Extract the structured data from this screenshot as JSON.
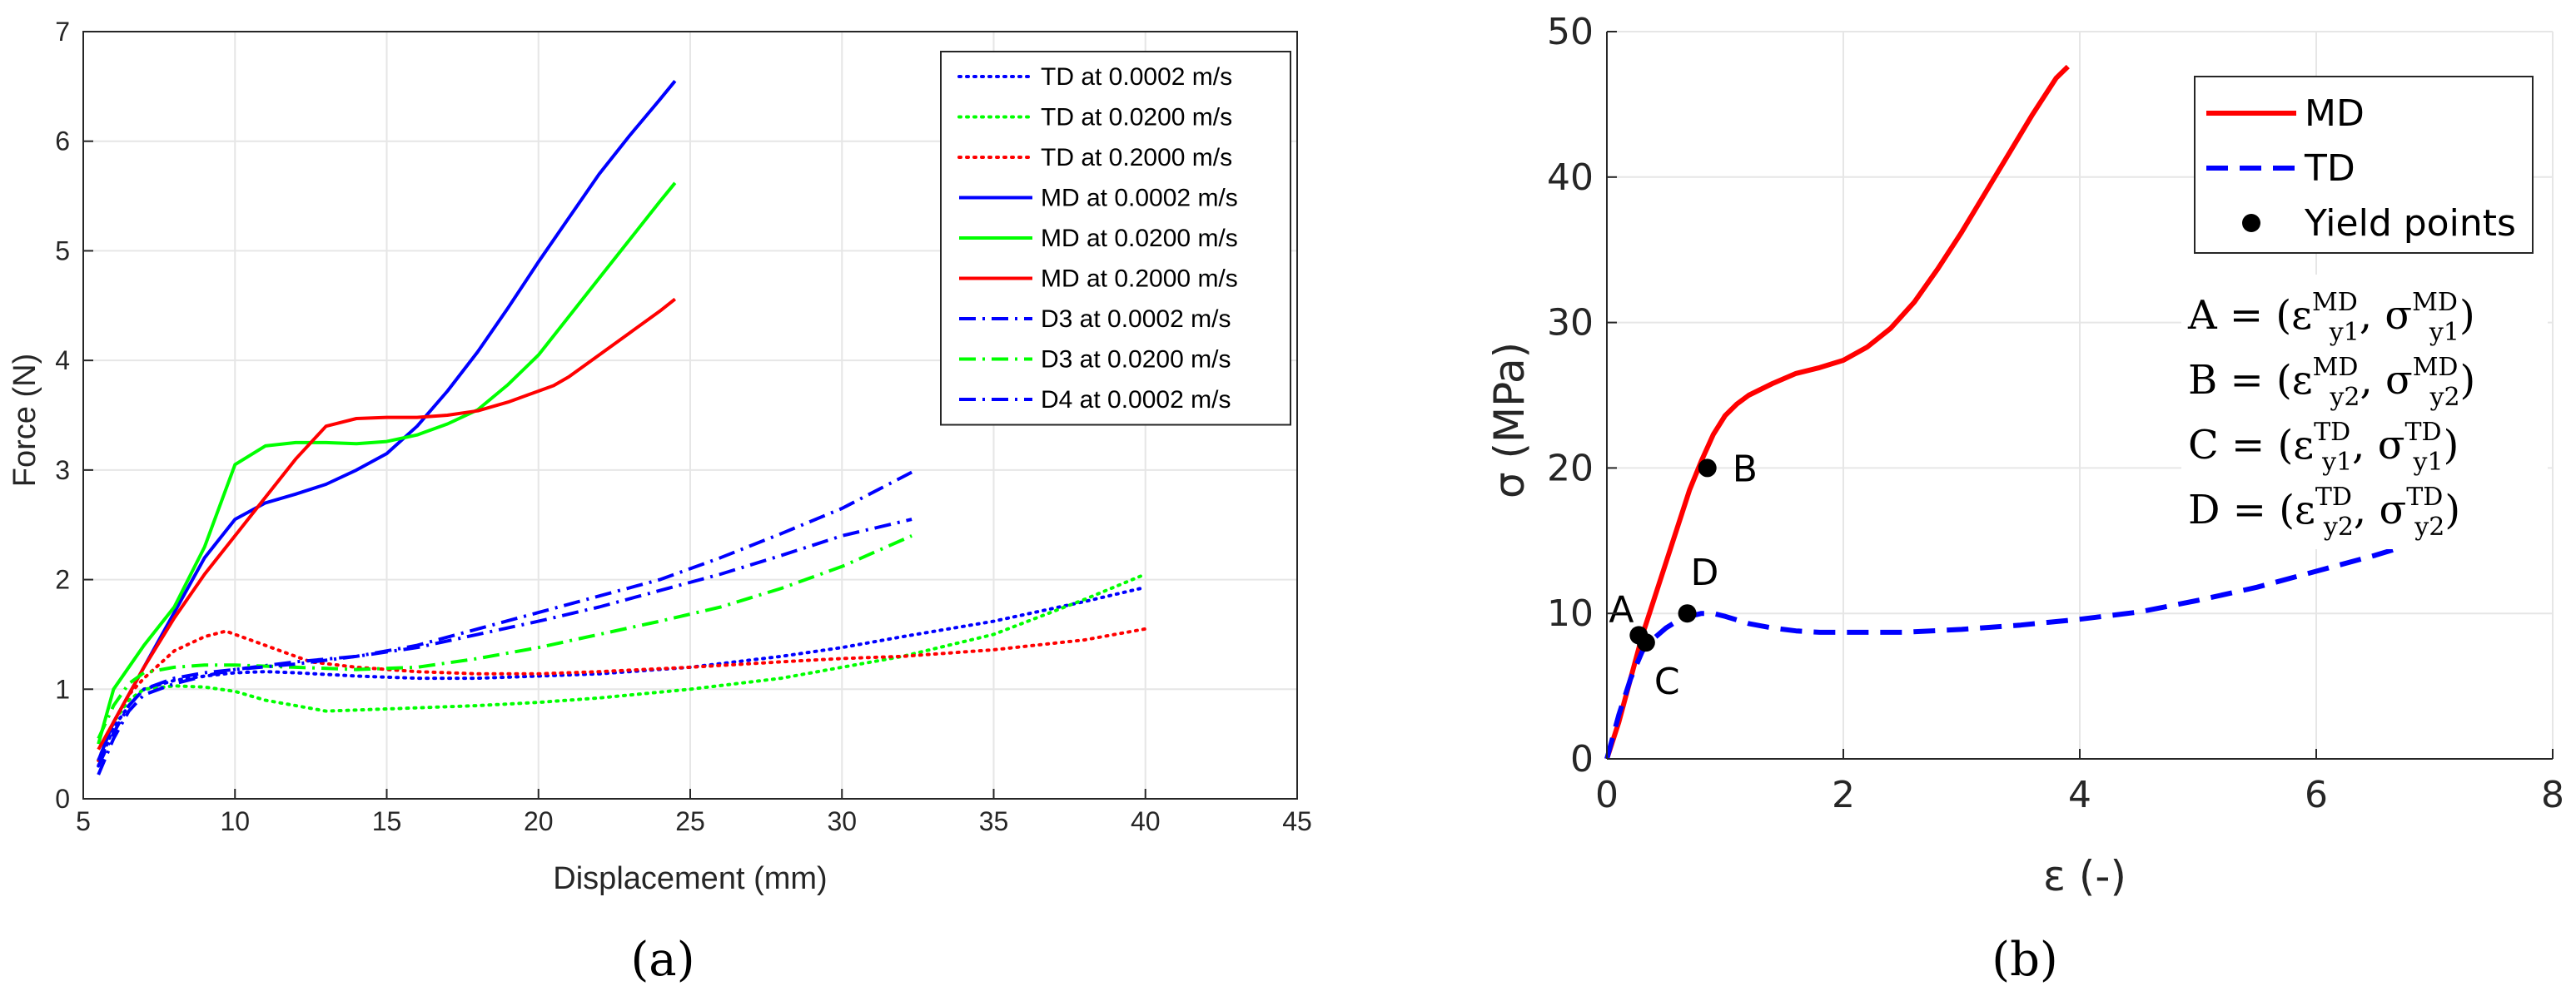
{
  "chart_data": [
    {
      "type": "line",
      "panel_label": "(a)",
      "xlabel": "Displacement (mm)",
      "ylabel": "Force (N)",
      "xlim": [
        5,
        45
      ],
      "ylim": [
        0,
        7
      ],
      "xticks": [
        5,
        10,
        15,
        20,
        25,
        30,
        35,
        40,
        45
      ],
      "yticks": [
        0,
        1,
        2,
        3,
        4,
        5,
        6,
        7
      ],
      "grid": true,
      "legend_position": "top-right",
      "series": [
        {
          "name": "TD at 0.0002 m/s",
          "color": "#0000ff",
          "style": "dotted",
          "x": [
            5.5,
            6,
            6.5,
            7,
            8,
            9,
            10,
            11,
            12,
            14,
            16,
            18,
            20,
            22,
            25,
            28,
            30,
            32,
            35,
            38,
            40
          ],
          "y": [
            0.3,
            0.65,
            0.85,
            1.0,
            1.08,
            1.12,
            1.15,
            1.16,
            1.15,
            1.12,
            1.1,
            1.1,
            1.12,
            1.14,
            1.2,
            1.3,
            1.38,
            1.48,
            1.62,
            1.8,
            1.93
          ]
        },
        {
          "name": "TD at 0.0200 m/s",
          "color": "#00ff00",
          "style": "dotted",
          "x": [
            5.5,
            6,
            6.5,
            7,
            8,
            9,
            10,
            11,
            12,
            13,
            15,
            18,
            20,
            22,
            25,
            28,
            30,
            32,
            35,
            38,
            40
          ],
          "y": [
            0.35,
            0.7,
            0.9,
            1.0,
            1.03,
            1.02,
            0.98,
            0.9,
            0.85,
            0.8,
            0.82,
            0.85,
            0.88,
            0.92,
            1.0,
            1.1,
            1.2,
            1.3,
            1.5,
            1.82,
            2.05
          ]
        },
        {
          "name": "TD at 0.2000 m/s",
          "color": "#ff0000",
          "style": "dotted",
          "x": [
            5.5,
            6,
            6.5,
            7,
            8,
            9,
            9.7,
            10.5,
            11.5,
            12.5,
            14,
            16,
            18,
            20,
            22,
            25,
            28,
            30,
            32,
            35,
            38,
            40
          ],
          "y": [
            0.35,
            0.7,
            0.95,
            1.1,
            1.35,
            1.48,
            1.53,
            1.45,
            1.35,
            1.25,
            1.2,
            1.16,
            1.14,
            1.14,
            1.16,
            1.2,
            1.25,
            1.28,
            1.3,
            1.36,
            1.45,
            1.55
          ]
        },
        {
          "name": "MD at 0.0002 m/s",
          "color": "#0000ff",
          "style": "solid",
          "x": [
            5.5,
            6,
            7,
            8,
            9,
            10,
            11,
            12,
            13,
            14,
            15,
            16,
            17,
            18,
            19,
            20,
            21,
            22,
            23,
            24,
            24.5
          ],
          "y": [
            0.35,
            0.7,
            1.2,
            1.7,
            2.2,
            2.55,
            2.7,
            2.78,
            2.87,
            3.0,
            3.15,
            3.4,
            3.72,
            4.08,
            4.48,
            4.9,
            5.3,
            5.7,
            6.05,
            6.38,
            6.55
          ]
        },
        {
          "name": "MD at 0.0200 m/s",
          "color": "#00ff00",
          "style": "solid",
          "x": [
            5.5,
            6,
            7,
            8,
            9,
            10,
            11,
            12,
            13,
            14,
            15,
            16,
            17,
            18,
            19,
            20,
            21,
            22,
            23,
            24,
            24.5
          ],
          "y": [
            0.5,
            1.0,
            1.4,
            1.75,
            2.3,
            3.05,
            3.22,
            3.25,
            3.25,
            3.24,
            3.26,
            3.32,
            3.42,
            3.55,
            3.78,
            4.05,
            4.4,
            4.75,
            5.1,
            5.45,
            5.62
          ]
        },
        {
          "name": "MD at 0.2000 m/s",
          "color": "#ff0000",
          "style": "solid",
          "x": [
            5.5,
            6,
            7,
            8,
            9,
            10,
            11,
            12,
            13,
            14,
            15,
            16,
            17,
            18,
            19,
            20,
            20.5,
            21,
            22,
            23,
            24,
            24.5
          ],
          "y": [
            0.45,
            0.7,
            1.2,
            1.65,
            2.05,
            2.4,
            2.75,
            3.1,
            3.4,
            3.47,
            3.48,
            3.48,
            3.5,
            3.54,
            3.62,
            3.72,
            3.77,
            3.85,
            4.05,
            4.25,
            4.45,
            4.56
          ]
        },
        {
          "name": "D3 at 0.0002 m/s",
          "color": "#0000ff",
          "style": "dashdot",
          "x": [
            5.5,
            6,
            6.5,
            7,
            8,
            9,
            10,
            12,
            14,
            16,
            18,
            20,
            22,
            24,
            26,
            28,
            30,
            32.3
          ],
          "y": [
            0.22,
            0.55,
            0.8,
            0.95,
            1.05,
            1.12,
            1.18,
            1.25,
            1.3,
            1.38,
            1.5,
            1.62,
            1.75,
            1.9,
            2.05,
            2.22,
            2.4,
            2.55
          ]
        },
        {
          "name": "D3 at 0.0200 m/s",
          "color": "#00ff00",
          "style": "dashdot",
          "x": [
            5.5,
            6,
            6.5,
            7,
            8,
            9,
            10,
            12,
            14,
            16,
            18,
            20,
            22,
            24,
            26,
            28,
            30,
            32.3
          ],
          "y": [
            0.55,
            0.85,
            1.05,
            1.15,
            1.2,
            1.22,
            1.22,
            1.2,
            1.18,
            1.2,
            1.28,
            1.38,
            1.5,
            1.62,
            1.75,
            1.92,
            2.12,
            2.4
          ]
        },
        {
          "name": "D4 at 0.0002 m/s",
          "color": "#0000ff",
          "style": "dashdot",
          "x": [
            5.5,
            6,
            6.5,
            7,
            8,
            9,
            10,
            12,
            14,
            16,
            18,
            20,
            22,
            24,
            26,
            28,
            30,
            32.3
          ],
          "y": [
            0.3,
            0.6,
            0.85,
            1.0,
            1.1,
            1.15,
            1.18,
            1.23,
            1.3,
            1.4,
            1.55,
            1.7,
            1.85,
            2.0,
            2.2,
            2.42,
            2.65,
            2.98
          ]
        }
      ]
    },
    {
      "type": "line",
      "panel_label": "(b)",
      "xlabel": "ε (-)",
      "ylabel": "σ (MPa)",
      "xlim": [
        0,
        8
      ],
      "ylim": [
        0,
        50
      ],
      "xticks": [
        0,
        2,
        4,
        6,
        8
      ],
      "yticks": [
        0,
        10,
        20,
        30,
        40,
        50
      ],
      "grid": true,
      "legend_position": "top-right",
      "series": [
        {
          "name": "MD",
          "color": "#ff0000",
          "style": "solid",
          "x": [
            0,
            0.1,
            0.2,
            0.3,
            0.4,
            0.5,
            0.6,
            0.7,
            0.8,
            0.9,
            1.0,
            1.1,
            1.2,
            1.4,
            1.6,
            1.8,
            2.0,
            2.2,
            2.4,
            2.6,
            2.8,
            3.0,
            3.2,
            3.4,
            3.6,
            3.8,
            3.9
          ],
          "y": [
            0,
            2.5,
            5.5,
            8.5,
            11,
            13.5,
            16,
            18.5,
            20.5,
            22.3,
            23.6,
            24.4,
            25.0,
            25.8,
            26.5,
            26.9,
            27.4,
            28.3,
            29.6,
            31.4,
            33.7,
            36.2,
            38.9,
            41.6,
            44.3,
            46.8,
            47.6
          ]
        },
        {
          "name": "TD",
          "color": "#0000ff",
          "style": "dashed",
          "x": [
            0,
            0.1,
            0.2,
            0.3,
            0.4,
            0.5,
            0.6,
            0.7,
            0.8,
            0.9,
            1.0,
            1.2,
            1.4,
            1.6,
            1.8,
            2.0,
            2.5,
            3.0,
            3.5,
            4.0,
            4.5,
            5.0,
            5.5,
            6.0,
            6.5,
            6.9
          ],
          "y": [
            0,
            3,
            5.5,
            7.4,
            8.3,
            9.0,
            9.5,
            9.8,
            10.0,
            10.0,
            9.8,
            9.3,
            9.0,
            8.8,
            8.7,
            8.7,
            8.7,
            8.9,
            9.2,
            9.6,
            10.1,
            10.9,
            11.8,
            12.9,
            14.0,
            15.0
          ]
        },
        {
          "name": "Yield points",
          "color": "#000000",
          "style": "markers",
          "points": [
            {
              "label": "A",
              "x": 0.27,
              "y": 8.5
            },
            {
              "label": "B",
              "x": 0.85,
              "y": 20.0
            },
            {
              "label": "C",
              "x": 0.33,
              "y": 8.0
            },
            {
              "label": "D",
              "x": 0.68,
              "y": 10.0
            }
          ]
        }
      ],
      "equations": [
        {
          "lhs": "A",
          "eps_sup": "MD",
          "eps_sub": "y1",
          "sig_sup": "MD",
          "sig_sub": "y1"
        },
        {
          "lhs": "B",
          "eps_sup": "MD",
          "eps_sub": "y2",
          "sig_sup": "MD",
          "sig_sub": "y2"
        },
        {
          "lhs": "C",
          "eps_sup": "TD",
          "eps_sub": "y1",
          "sig_sup": "TD",
          "sig_sub": "y1"
        },
        {
          "lhs": "D",
          "eps_sup": "TD",
          "eps_sub": "y2",
          "sig_sup": "TD",
          "sig_sub": "y2"
        }
      ]
    }
  ]
}
